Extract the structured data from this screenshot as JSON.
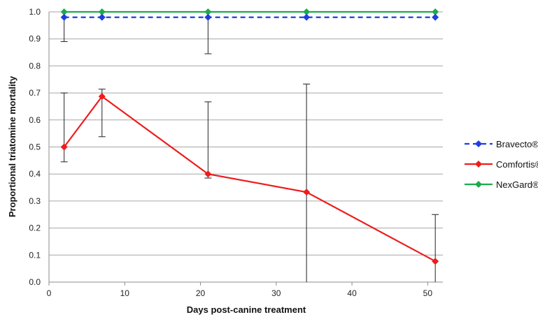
{
  "chart_data": {
    "type": "line",
    "xlabel": "Days post-canine treatment",
    "ylabel": "Proportional triatomine mortality",
    "xlim": [
      0,
      52
    ],
    "ylim": [
      0,
      1.0
    ],
    "x_ticks": [
      "0",
      "10",
      "20",
      "30",
      "40",
      "50"
    ],
    "y_ticks": [
      "0.0",
      "0.1",
      "0.2",
      "0.3",
      "0.4",
      "0.5",
      "0.6",
      "0.7",
      "0.8",
      "0.9",
      "1.0"
    ],
    "grid": "horizontal",
    "legend_position": "right",
    "series": [
      {
        "name": "Bravecto®",
        "color": "#1f3fe0",
        "dashed": true,
        "marker": "diamond",
        "x": [
          2,
          7,
          21,
          34,
          51
        ],
        "y": [
          0.98,
          0.98,
          0.98,
          0.98,
          0.98
        ],
        "err_low": [
          0.89,
          null,
          0.845,
          null,
          null
        ],
        "err_high": [
          null,
          null,
          null,
          null,
          null
        ]
      },
      {
        "name": "Comfortis®",
        "color": "#ee1c1c",
        "dashed": false,
        "marker": "diamond",
        "x": [
          2,
          7,
          21,
          34,
          51
        ],
        "y": [
          0.5,
          0.687,
          0.4,
          0.333,
          0.077
        ],
        "err_low": [
          0.445,
          0.538,
          0.385,
          0.0,
          0.0
        ],
        "err_high": [
          0.7,
          0.714,
          0.667,
          0.733,
          0.25
        ]
      },
      {
        "name": "NexGard®",
        "color": "#1faa4a",
        "dashed": false,
        "marker": "diamond",
        "x": [
          2,
          7,
          21,
          34,
          51
        ],
        "y": [
          1.0,
          1.0,
          1.0,
          1.0,
          1.0
        ],
        "err_low": [
          null,
          null,
          null,
          null,
          null
        ],
        "err_high": [
          null,
          null,
          null,
          null,
          null
        ]
      }
    ]
  }
}
